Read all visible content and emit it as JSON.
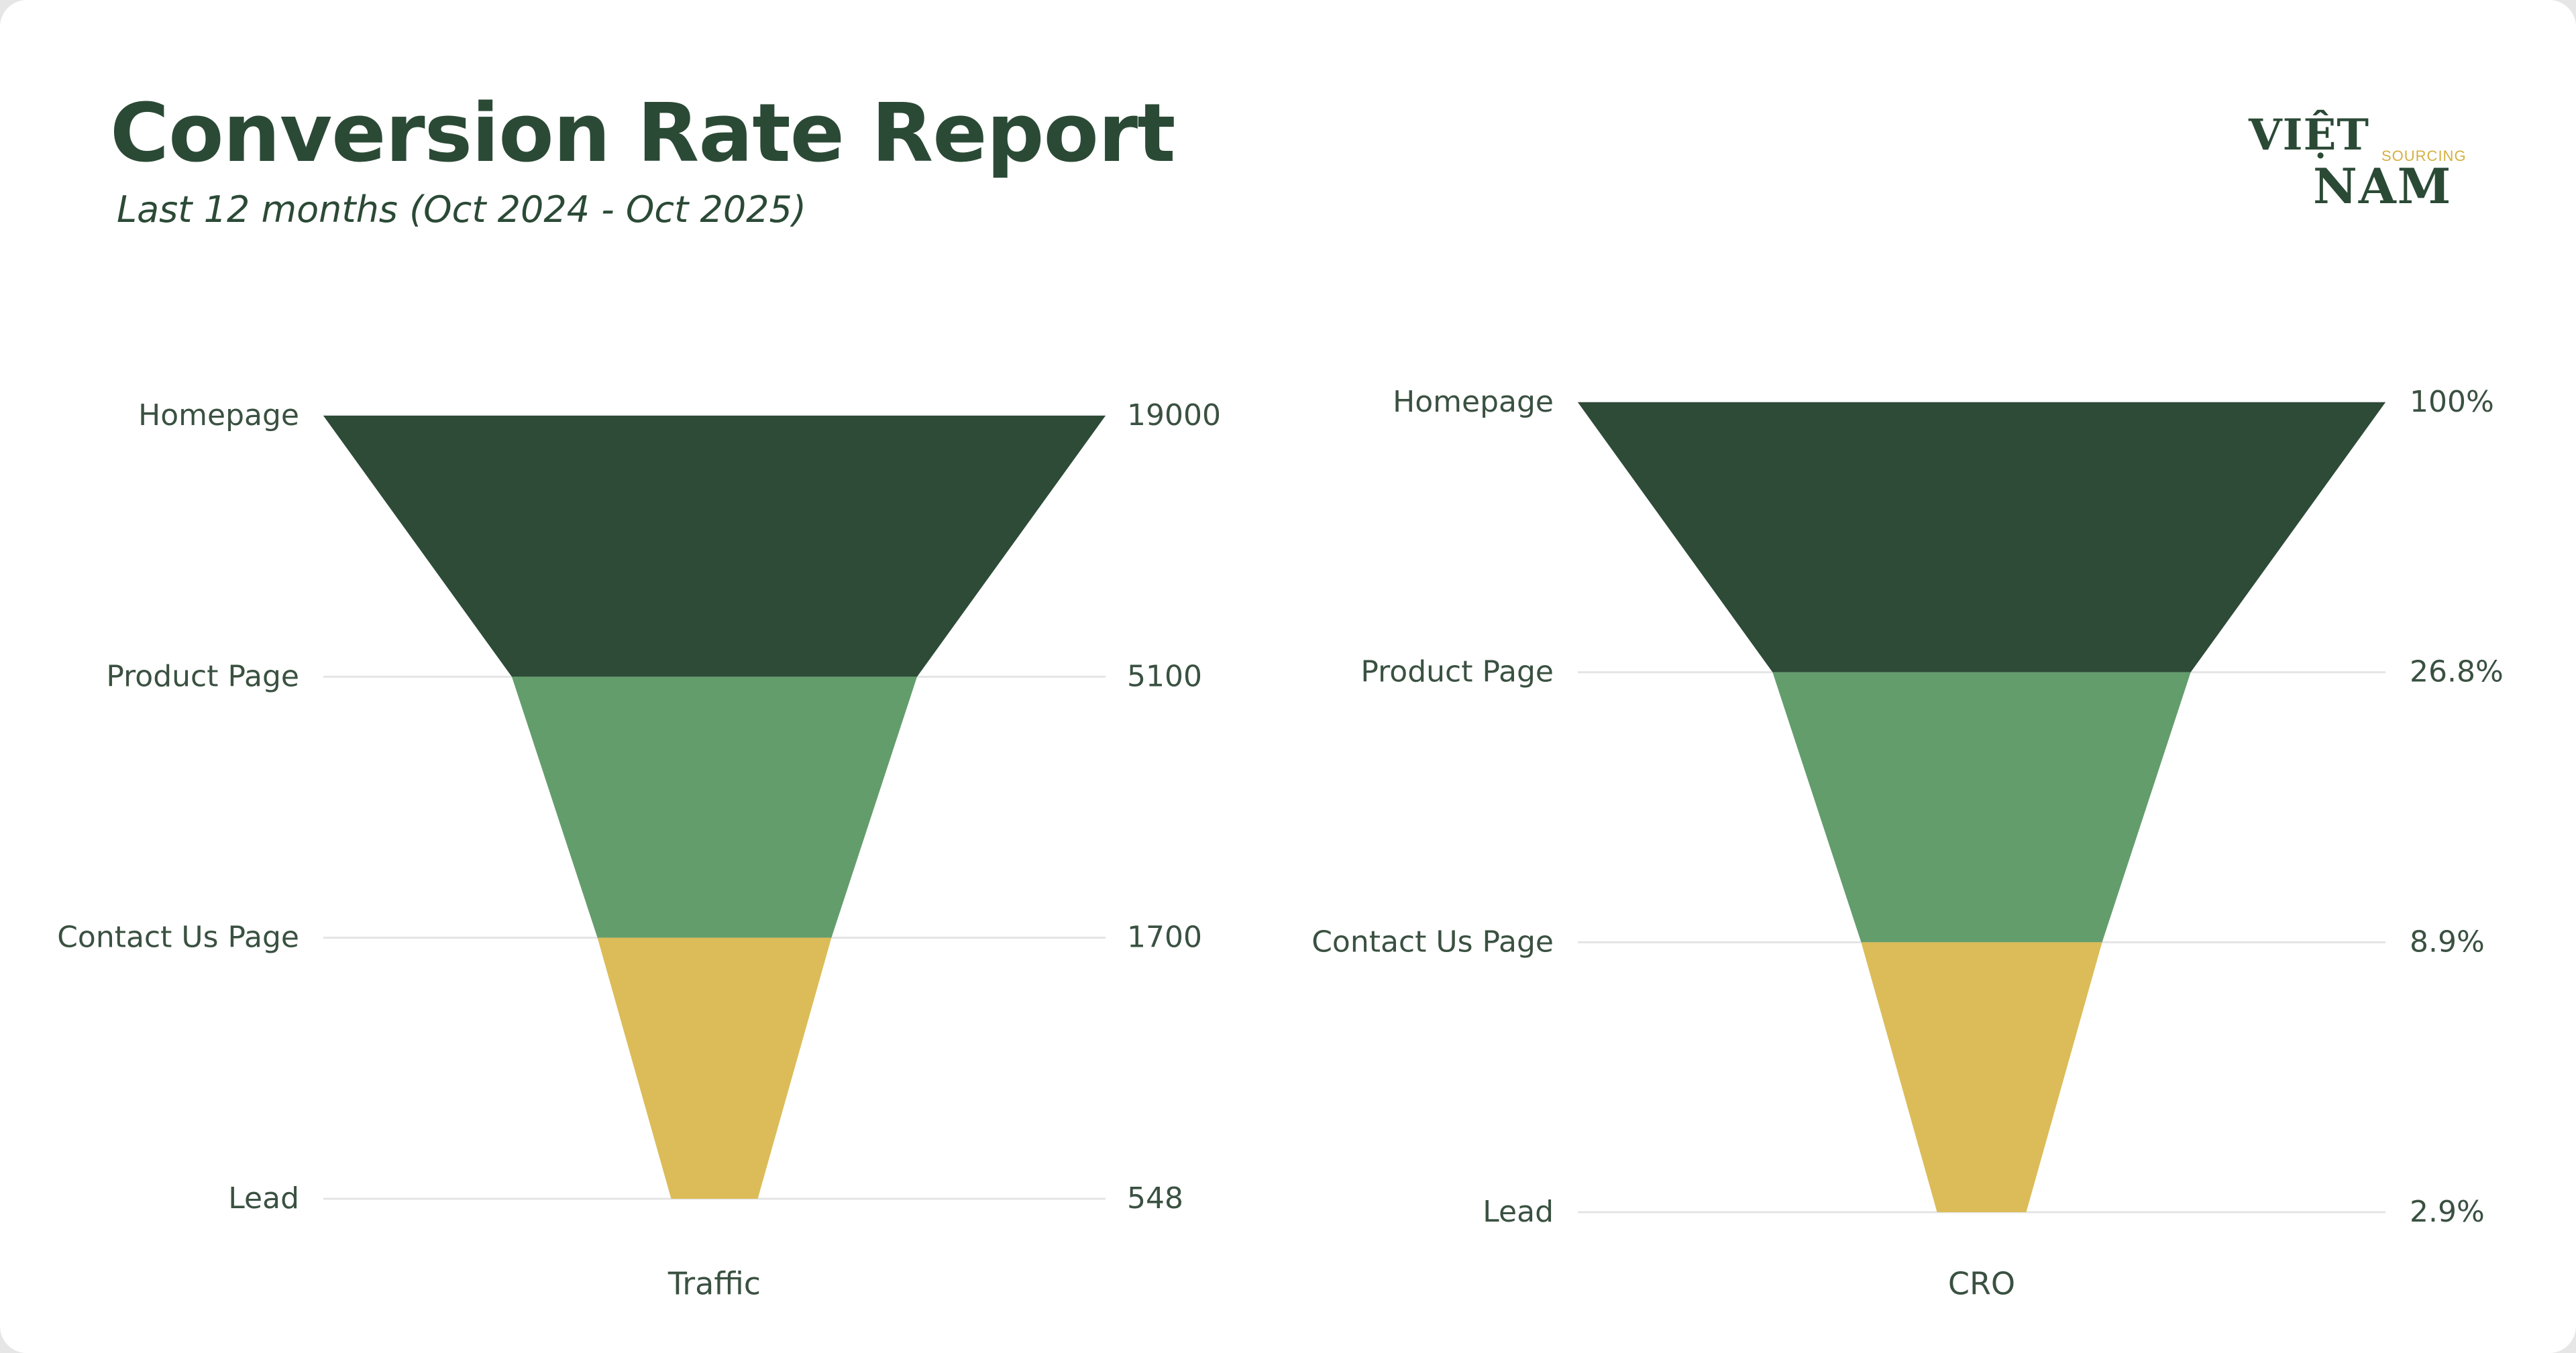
{
  "header": {
    "title": "Conversion Rate Report",
    "subtitle": "Last 12 months (Oct 2024 - Oct 2025)"
  },
  "logo": {
    "line1": "VIỆT",
    "line2": "NAM",
    "tagline": "SOURCING"
  },
  "colors": {
    "title": "#2b4a36",
    "label": "#3a5141",
    "grid": "#e4e4e4",
    "stages": [
      "#2d4b37",
      "#639d6c",
      "#dcbc58"
    ]
  },
  "chart_data": [
    {
      "type": "funnel",
      "xlabel": "Traffic",
      "categories": [
        "Homepage",
        "Product Page",
        "Contact Us Page",
        "Lead"
      ],
      "values": [
        19000,
        5100,
        1700,
        548
      ],
      "value_labels": [
        "19000",
        "5100",
        "1700",
        "548"
      ]
    },
    {
      "type": "funnel",
      "xlabel": "CRO",
      "categories": [
        "Homepage",
        "Product Page",
        "Contact Us Page",
        "Lead"
      ],
      "values": [
        100,
        26.8,
        8.9,
        2.9
      ],
      "value_labels": [
        "100%",
        "26.8%",
        "8.9%",
        "2.9%"
      ]
    }
  ]
}
